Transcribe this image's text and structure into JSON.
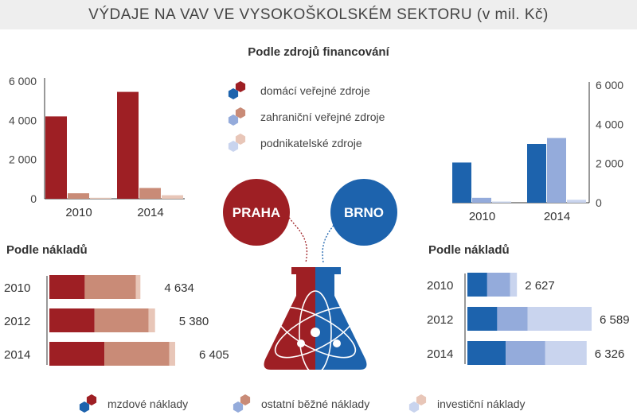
{
  "title": "VÝDAJE NA VAV VE VYSOKOŠKOLSKÉM SEKTORU (v mil. Kč)",
  "colors": {
    "praha": [
      "#9e1f24",
      "#c98b77",
      "#e8c6b8"
    ],
    "brno": [
      "#1d63ad",
      "#94abdb",
      "#c9d4ee"
    ],
    "axis": "#333333"
  },
  "chart_data": [
    {
      "id": "praha-sources",
      "type": "bar",
      "title": "Podle zdrojů financování",
      "region": "PRAHA",
      "categories": [
        "2010",
        "2014"
      ],
      "series": [
        {
          "name": "domácí veřejné zdroje",
          "values": [
            4200,
            5450
          ]
        },
        {
          "name": "zahraniční veřejné zdroje",
          "values": [
            280,
            550
          ]
        },
        {
          "name": "podnikatelské zdroje",
          "values": [
            50,
            180
          ]
        }
      ],
      "yticks": [
        "0",
        "2 000",
        "4 000",
        "6 000"
      ],
      "ylim": [
        0,
        6000
      ]
    },
    {
      "id": "brno-sources",
      "type": "bar",
      "title": "Podle zdrojů financování",
      "region": "BRNO",
      "categories": [
        "2010",
        "2014"
      ],
      "series": [
        {
          "name": "domácí veřejné zdroje",
          "values": [
            2050,
            3000
          ]
        },
        {
          "name": "zahraniční veřejné zdroje",
          "values": [
            250,
            3300
          ]
        },
        {
          "name": "podnikatelské zdroje",
          "values": [
            60,
            150
          ]
        }
      ],
      "yticks": [
        "0",
        "2 000",
        "4 000",
        "6 000"
      ],
      "ylim": [
        0,
        6000
      ]
    },
    {
      "id": "praha-costs",
      "type": "bar",
      "orientation": "horizontal-stacked",
      "title": "Podle nákladů",
      "region": "PRAHA",
      "categories": [
        "2010",
        "2012",
        "2014"
      ],
      "series": [
        {
          "name": "mzdové náklady",
          "values": [
            1800,
            2300,
            2800
          ]
        },
        {
          "name": "ostatní běžné náklady",
          "values": [
            2600,
            2750,
            3300
          ]
        },
        {
          "name": "investiční náklady",
          "values": [
            234,
            330,
            305
          ]
        }
      ],
      "totals": [
        "4 634",
        "5 380",
        "6 405"
      ],
      "xlim": [
        0,
        6405
      ]
    },
    {
      "id": "brno-costs",
      "type": "bar",
      "orientation": "horizontal-stacked",
      "title": "Podle nákladů",
      "region": "BRNO",
      "categories": [
        "2010",
        "2012",
        "2014"
      ],
      "series": [
        {
          "name": "mzdové náklady",
          "values": [
            1050,
            1580,
            2030
          ]
        },
        {
          "name": "ostatní běžné náklady",
          "values": [
            1220,
            1610,
            2100
          ]
        },
        {
          "name": "investiční náklady",
          "values": [
            357,
            3399,
            2196
          ]
        }
      ],
      "totals": [
        "2 627",
        "6 589",
        "6 326"
      ],
      "xlim": [
        0,
        6589
      ]
    }
  ],
  "legend_sources": [
    "domácí veřejné zdroje",
    "zahraniční veřejné zdroje",
    "podnikatelské zdroje"
  ],
  "legend_costs": [
    "mzdové náklady",
    "ostatní běžné náklady",
    "investiční náklady"
  ],
  "cities": {
    "left": "PRAHA",
    "right": "BRNO"
  }
}
